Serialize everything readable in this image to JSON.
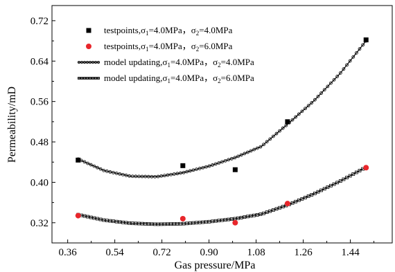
{
  "chart_data": {
    "type": "scatter",
    "xlabel": "Gas pressure/MPa",
    "ylabel": "Permeability/mD",
    "xlim": [
      0.3,
      1.6
    ],
    "ylim": [
      0.28,
      0.75
    ],
    "xticks": [
      "0.36",
      "0.54",
      "0.72",
      "0.90",
      "1.08",
      "1.26",
      "1.44"
    ],
    "yticks": [
      "0.32",
      "0.40",
      "0.48",
      "0.56",
      "0.64",
      "0.72"
    ],
    "legend_position": "top-left",
    "series": [
      {
        "name": "testpoints,σ1=4.0MPa，σ2=4.0MPa",
        "name_parts": [
          "testpoints,σ",
          "1",
          "=4.0MPa，σ",
          "2",
          "=4.0MPa"
        ],
        "kind": "points",
        "marker": "square",
        "color": "#000000",
        "x": [
          0.4,
          0.8,
          1.0,
          1.2,
          1.5
        ],
        "y": [
          0.444,
          0.433,
          0.425,
          0.52,
          0.682
        ]
      },
      {
        "name": "testpoints,σ1=4.0MPa，σ2=6.0MPa",
        "name_parts": [
          "testpoints,σ",
          "1",
          "=4.0MPa，σ",
          "2",
          "=6.0MPa"
        ],
        "kind": "points",
        "marker": "circle",
        "color": "#e8262b",
        "x": [
          0.4,
          0.8,
          1.0,
          1.2,
          1.5
        ],
        "y": [
          0.334,
          0.328,
          0.32,
          0.358,
          0.429
        ]
      },
      {
        "name": "model updating,σ1=4.0MPa，σ2=4.0MPa",
        "name_parts": [
          "model updating,σ",
          "1",
          "=4.0MPa，σ",
          "2",
          "=4.0MPa"
        ],
        "kind": "curve",
        "marker": "small-circle",
        "color": "#000000",
        "x": [
          0.4,
          0.5,
          0.6,
          0.7,
          0.8,
          0.9,
          1.0,
          1.1,
          1.2,
          1.3,
          1.4,
          1.5
        ],
        "y": [
          0.446,
          0.423,
          0.412,
          0.411,
          0.419,
          0.432,
          0.449,
          0.471,
          0.515,
          0.561,
          0.615,
          0.68
        ]
      },
      {
        "name": "model updating,σ1=4.0MPa，σ2=6.0MPa",
        "name_parts": [
          "model updating,σ",
          "1",
          "=4.0MPa，σ",
          "2",
          "=6.0MPa"
        ],
        "kind": "curve",
        "marker": "small-square",
        "color": "#000000",
        "x": [
          0.4,
          0.5,
          0.6,
          0.7,
          0.8,
          0.9,
          1.0,
          1.1,
          1.2,
          1.3,
          1.4,
          1.5
        ],
        "y": [
          0.336,
          0.325,
          0.319,
          0.317,
          0.318,
          0.322,
          0.328,
          0.337,
          0.355,
          0.377,
          0.402,
          0.43
        ]
      }
    ]
  }
}
